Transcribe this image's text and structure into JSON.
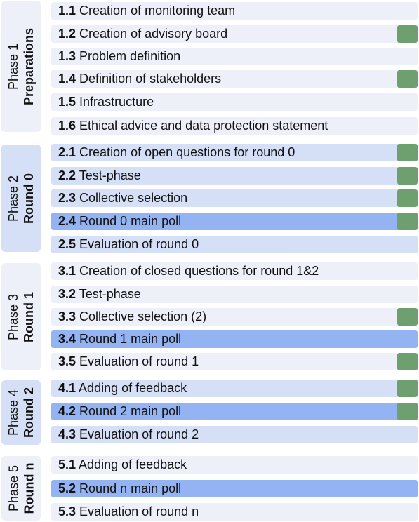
{
  "colors": {
    "phase_label_bg": "#e2e7f4",
    "step_bg_light": "#edf0f8",
    "step_bg_medium": "#d5dff5",
    "step_bg_strong": "#94b3f2",
    "marker": "#6e9f6e"
  },
  "phases": [
    {
      "label": "Phase 1",
      "name": "Preparations",
      "label_bg": "#edf0f8",
      "steps": [
        {
          "num": "1.1",
          "text": "Creation of monitoring team",
          "style": "light",
          "marked": false
        },
        {
          "num": "1.2",
          "text": "Creation of advisory board",
          "style": "light",
          "marked": true
        },
        {
          "num": "1.3",
          "text": "Problem definition",
          "style": "light",
          "marked": false
        },
        {
          "num": "1.4",
          "text": "Definition of stakeholders",
          "style": "light",
          "marked": true
        },
        {
          "num": "1.5",
          "text": "Infrastructure",
          "style": "light",
          "marked": false
        },
        {
          "num": "1.6",
          "text": "Ethical advice and data protection statement",
          "style": "light",
          "marked": false
        }
      ]
    },
    {
      "label": "Phase 2",
      "name": "Round 0",
      "label_bg": "#d5dff5",
      "steps": [
        {
          "num": "2.1",
          "text": "Creation of open questions for round 0",
          "style": "medium",
          "marked": true
        },
        {
          "num": "2.2",
          "text": "Test-phase",
          "style": "medium",
          "marked": true
        },
        {
          "num": "2.3",
          "text": "Collective selection",
          "style": "medium",
          "marked": true
        },
        {
          "num": "2.4",
          "text": "Round 0 main poll",
          "style": "strong",
          "marked": true
        },
        {
          "num": "2.5",
          "text": "Evaluation of round 0",
          "style": "medium",
          "marked": false
        }
      ]
    },
    {
      "label": "Phase 3",
      "name": "Round 1",
      "label_bg": "#edf0f8",
      "steps": [
        {
          "num": "3.1",
          "text": "Creation of closed questions for round 1&2",
          "style": "light",
          "marked": false
        },
        {
          "num": "3.2",
          "text": "Test-phase",
          "style": "light",
          "marked": false
        },
        {
          "num": "3.3",
          "text": "Collective selection (2)",
          "style": "light",
          "marked": true
        },
        {
          "num": "3.4",
          "text": "Round 1 main poll",
          "style": "strong",
          "marked": false
        },
        {
          "num": "3.5",
          "text": "Evaluation of round 1",
          "style": "light",
          "marked": true
        }
      ]
    },
    {
      "label": "Phase 4",
      "name": "Round 2",
      "label_bg": "#d5dff5",
      "steps": [
        {
          "num": "4.1",
          "text": "Adding of feedback",
          "style": "medium",
          "marked": true
        },
        {
          "num": "4.2",
          "text": "Round 2 main poll",
          "style": "strong",
          "marked": true
        },
        {
          "num": "4.3",
          "text": "Evaluation of round 2",
          "style": "medium",
          "marked": false
        }
      ]
    },
    {
      "label": "Phase 5",
      "name": "Round n",
      "label_bg": "#edf0f8",
      "steps": [
        {
          "num": "5.1",
          "text": "Adding of feedback",
          "style": "light",
          "marked": false
        },
        {
          "num": "5.2",
          "text": "Round n main poll",
          "style": "strong",
          "marked": false
        },
        {
          "num": "5.3",
          "text": "Evaluation of round n",
          "style": "light",
          "marked": false
        }
      ]
    }
  ]
}
